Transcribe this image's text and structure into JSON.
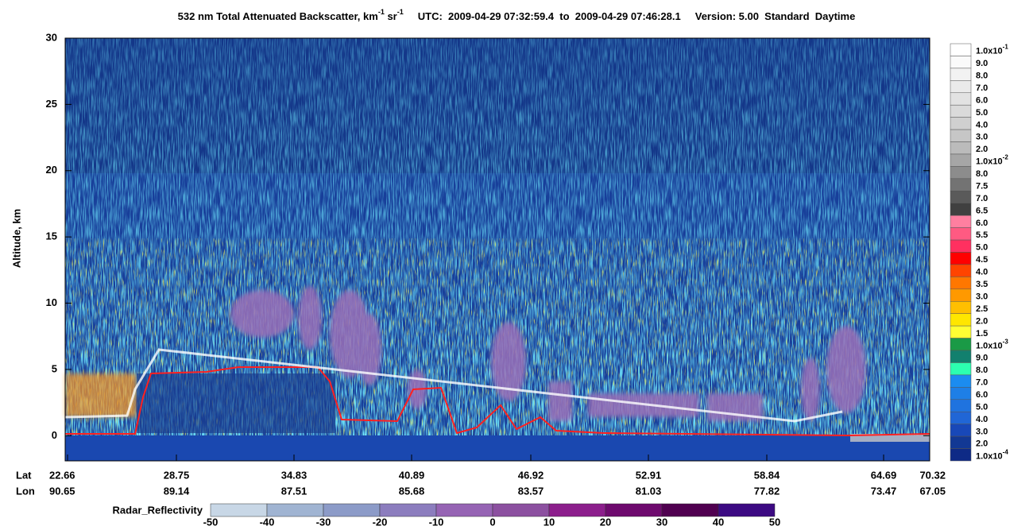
{
  "title": {
    "product": "532 nm Total Attenuated Backscatter, km",
    "exp1": "-1",
    "mid": " sr",
    "exp2": "-1",
    "utc": "UTC:  2009-04-29 07:32:59.4  to  2009-04-29 07:46:28.1",
    "version": "Version: 5.00  Standard  Daytime"
  },
  "y_axis": {
    "label": "Altitude, km",
    "lim": [
      -1.9,
      30
    ],
    "ticks": [
      0,
      5,
      10,
      15,
      20,
      25,
      30
    ]
  },
  "x_axis": {
    "lat_label": "Lat",
    "lon_label": "Lon",
    "lat": [
      22.66,
      28.75,
      34.83,
      40.89,
      46.92,
      52.91,
      58.84,
      64.69,
      70.32
    ],
    "lon": [
      90.65,
      89.14,
      87.51,
      85.68,
      83.57,
      81.03,
      77.82,
      73.47,
      67.05
    ]
  },
  "colorbar": {
    "labels": [
      {
        "base": "1.0x10",
        "exp": "-1"
      },
      "9.0",
      "8.0",
      "7.0",
      "6.0",
      "5.0",
      "4.0",
      "3.0",
      "2.0",
      {
        "base": "1.0x10",
        "exp": "-2"
      },
      "8.0",
      "7.5",
      "7.0",
      "6.5",
      "6.0",
      "5.5",
      "5.0",
      "4.5",
      "4.0",
      "3.5",
      "3.0",
      "2.5",
      "2.0",
      "1.5",
      {
        "base": "1.0x10",
        "exp": "-3"
      },
      "9.0",
      "8.0",
      "7.0",
      "6.0",
      "5.0",
      "4.0",
      "3.0",
      "2.0",
      {
        "base": "1.0x10",
        "exp": "-4"
      }
    ],
    "colors": [
      "#ffffff",
      "#fafafa",
      "#f2f2f2",
      "#eaeaea",
      "#e2e2e2",
      "#dadada",
      "#d0d0d0",
      "#c6c6c6",
      "#bbbbbb",
      "#a6a6a6",
      "#8c8c8c",
      "#737373",
      "#5a5a5a",
      "#404040",
      "#ff7fa0",
      "#ff5a82",
      "#ff3060",
      "#ff0000",
      "#ff4400",
      "#ff7700",
      "#ff9900",
      "#ffbf00",
      "#ffe600",
      "#ffff33",
      "#1a9a46",
      "#12806e",
      "#2cffb0",
      "#1b8cf0",
      "#1e7fe6",
      "#1f73df",
      "#2066d6",
      "#1848b8",
      "#123894",
      "#0e2a86"
    ]
  },
  "radar": {
    "label": "Radar_Reflectivity",
    "ticks": [
      -50,
      -40,
      -30,
      -20,
      -10,
      0,
      10,
      20,
      30,
      40,
      50
    ],
    "colors": [
      "#c8d7e6",
      "#a0b4d2",
      "#8c9bc8",
      "#8c7dbe",
      "#9664b4",
      "#8c50a0",
      "#8c1e8c",
      "#6e0a6e",
      "#500050",
      "#3c0a82"
    ]
  }
}
